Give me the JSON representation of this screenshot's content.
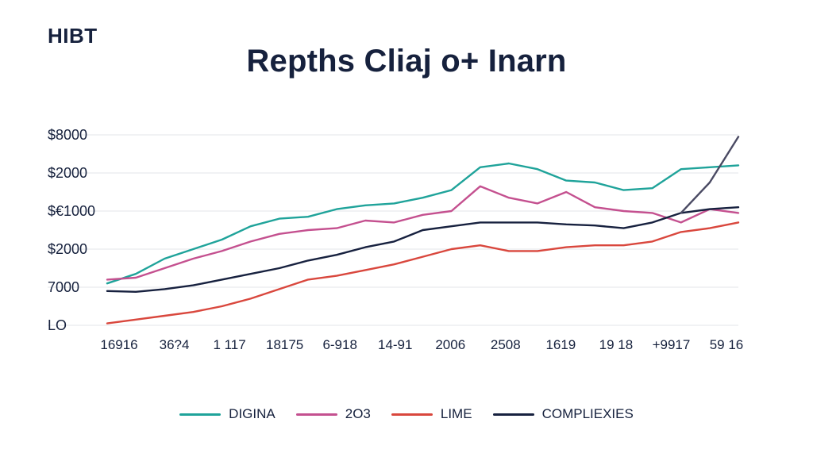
{
  "brand": "HIBT",
  "chart_data": {
    "type": "line",
    "title": "Repths Cliaj o+ Inarn",
    "xlabel": "",
    "ylabel": "",
    "y_tick_labels": [
      "LO",
      "7000",
      "$2000",
      "$€1000",
      "$2000",
      "$8000"
    ],
    "x_tick_labels": [
      "16916",
      "36?4",
      "1 117",
      "18175",
      "6-918",
      "14-91",
      "2006",
      "2508",
      "1619",
      "19 18",
      "+9917",
      "59 16"
    ],
    "y_axis": "index of y tick labels, 0 = LO at bottom, 5 = $8000 at top",
    "ylim": [
      0,
      5
    ],
    "grid": true,
    "legend_position": "bottom",
    "colors": {
      "teal": "#1fa39a",
      "magenta": "#c4508f",
      "red": "#d9473d",
      "navy": "#17213f",
      "slate": "#4a4a63"
    },
    "x": [
      0,
      0.5,
      1,
      1.5,
      2,
      2.5,
      3,
      3.5,
      4,
      4.5,
      5,
      5.5,
      6,
      6.5,
      7,
      7.5,
      8,
      8.5,
      9,
      9.5,
      10,
      10.5,
      11
    ],
    "series": [
      {
        "name": "DIGINA",
        "color": "#1fa39a",
        "values": [
          1.1,
          1.35,
          1.75,
          2.0,
          2.25,
          2.6,
          2.8,
          2.85,
          3.05,
          3.15,
          3.2,
          3.35,
          3.55,
          4.15,
          4.25,
          4.1,
          3.8,
          3.75,
          3.55,
          3.6,
          4.1,
          4.15,
          4.2
        ]
      },
      {
        "name": "2O3",
        "color": "#c4508f",
        "values": [
          1.2,
          1.25,
          1.5,
          1.75,
          1.95,
          2.2,
          2.4,
          2.5,
          2.55,
          2.75,
          2.7,
          2.9,
          3.0,
          3.65,
          3.35,
          3.2,
          3.5,
          3.1,
          3.0,
          2.95,
          2.7,
          3.05,
          2.95
        ]
      },
      {
        "name": "LIME",
        "color": "#d9473d",
        "values": [
          0.05,
          0.15,
          0.25,
          0.35,
          0.5,
          0.7,
          0.95,
          1.2,
          1.3,
          1.45,
          1.6,
          1.8,
          2.0,
          2.1,
          1.95,
          1.95,
          2.05,
          2.1,
          2.1,
          2.2,
          2.45,
          2.55,
          2.7
        ]
      },
      {
        "name": "COMPLIEXIES",
        "color": "#17213f",
        "values": [
          0.9,
          0.88,
          0.95,
          1.05,
          1.2,
          1.35,
          1.5,
          1.7,
          1.85,
          2.05,
          2.2,
          2.5,
          2.6,
          2.7,
          2.7,
          2.7,
          2.65,
          2.62,
          2.55,
          2.7,
          2.95,
          3.05,
          3.1
        ]
      },
      {
        "name": "",
        "color": "#4a4a63",
        "values": [
          null,
          null,
          null,
          null,
          null,
          null,
          null,
          null,
          null,
          null,
          null,
          null,
          null,
          null,
          null,
          null,
          null,
          null,
          null,
          null,
          2.95,
          3.75,
          4.95
        ]
      }
    ]
  },
  "legend": [
    {
      "label": "DIGINA",
      "color": "#1fa39a"
    },
    {
      "label": "2O3",
      "color": "#c4508f"
    },
    {
      "label": "LIME",
      "color": "#d9473d"
    },
    {
      "label": "COMPLIEXIES",
      "color": "#17213f"
    }
  ]
}
